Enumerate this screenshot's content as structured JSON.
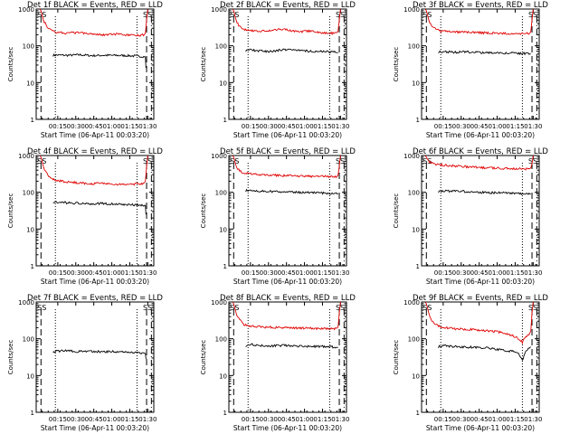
{
  "chart_data": [
    {
      "type": "line",
      "title": "Det 1f BLACK = Events, RED = LLD",
      "xlabel": "Start Time (06-Apr-11 00:03:20)",
      "ylabel": "Counts/sec",
      "yscale": "log",
      "ylim": [
        1,
        1000
      ],
      "xlim_min": [
        0,
        98
      ],
      "x_tick_labels": [
        "00:15",
        "00:30",
        "00:45",
        "01:00",
        "01:15",
        "01:30"
      ],
      "y_tick_labels": [
        "1",
        "10",
        "100",
        "1000"
      ],
      "markers": [
        "SS",
        "SS"
      ],
      "series": [
        {
          "name": "BLACK",
          "color": "#000000",
          "x": [
            8,
            12,
            20,
            30,
            40,
            50,
            60,
            70,
            80,
            85,
            85.5
          ],
          "y": [
            55,
            56,
            55,
            57,
            54,
            55,
            55,
            54,
            52,
            50,
            25
          ]
        },
        {
          "name": "RED",
          "color": "#e00000",
          "x": [
            -3,
            -2,
            0,
            3,
            6,
            10,
            20,
            30,
            40,
            50,
            60,
            70,
            80,
            84,
            85,
            86,
            87
          ],
          "y": [
            1000,
            900,
            500,
            330,
            270,
            240,
            220,
            230,
            215,
            200,
            205,
            195,
            190,
            200,
            220,
            500,
            1000
          ]
        }
      ]
    },
    {
      "type": "line",
      "title": "Det 2f BLACK = Events, RED = LLD",
      "xlabel": "Start Time (06-Apr-11 00:03:20)",
      "ylabel": "Counts/sec",
      "yscale": "log",
      "ylim": [
        1,
        1000
      ],
      "x_tick_labels": [
        "00:15",
        "00:30",
        "00:45",
        "01:00",
        "01:15",
        "01:30"
      ],
      "y_tick_labels": [
        "1",
        "10",
        "100",
        "1000"
      ],
      "markers": [
        "SS",
        "SS"
      ],
      "series": [
        {
          "name": "BLACK",
          "color": "#000000",
          "x": [
            8,
            12,
            20,
            30,
            40,
            50,
            60,
            70,
            80,
            85
          ],
          "y": [
            75,
            78,
            72,
            70,
            80,
            78,
            72,
            70,
            68,
            65
          ]
        },
        {
          "name": "RED",
          "color": "#e00000",
          "x": [
            -3,
            -2,
            0,
            3,
            6,
            10,
            20,
            30,
            40,
            50,
            60,
            70,
            80,
            84,
            85,
            86,
            87
          ],
          "y": [
            1000,
            900,
            500,
            330,
            280,
            270,
            250,
            260,
            290,
            240,
            250,
            230,
            220,
            230,
            250,
            500,
            1000
          ]
        }
      ]
    },
    {
      "type": "line",
      "title": "Det 3f BLACK = Events, RED = LLD",
      "xlabel": "Start Time (06-Apr-11 00:03:20)",
      "ylabel": "Counts/sec",
      "yscale": "log",
      "ylim": [
        1,
        1000
      ],
      "x_tick_labels": [
        "00:15",
        "00:30",
        "00:45",
        "01:00",
        "01:15",
        "01:30"
      ],
      "y_tick_labels": [
        "1",
        "10",
        "100",
        "1000"
      ],
      "markers": [
        "SS",
        "SS"
      ],
      "series": [
        {
          "name": "BLACK",
          "color": "#000000",
          "x": [
            8,
            12,
            20,
            30,
            40,
            50,
            60,
            70,
            80,
            85
          ],
          "y": [
            68,
            70,
            67,
            68,
            66,
            65,
            64,
            63,
            62,
            60
          ]
        },
        {
          "name": "RED",
          "color": "#e00000",
          "x": [
            -3,
            -2,
            0,
            3,
            6,
            10,
            20,
            30,
            40,
            50,
            60,
            70,
            80,
            84,
            85,
            86,
            87
          ],
          "y": [
            1000,
            900,
            500,
            330,
            280,
            250,
            240,
            235,
            230,
            225,
            220,
            215,
            210,
            220,
            240,
            500,
            1000
          ]
        }
      ]
    },
    {
      "type": "line",
      "title": "Det 4f BLACK = Events, RED = LLD",
      "xlabel": "Start Time (06-Apr-11 00:03:20)",
      "ylabel": "Counts/sec",
      "yscale": "log",
      "ylim": [
        1,
        1000
      ],
      "x_tick_labels": [
        "00:15",
        "00:30",
        "00:45",
        "01:00",
        "01:15",
        "01:30"
      ],
      "y_tick_labels": [
        "1",
        "10",
        "100",
        "1000"
      ],
      "markers": [
        "SS",
        "SS"
      ],
      "series": [
        {
          "name": "BLACK",
          "color": "#000000",
          "x": [
            8,
            12,
            20,
            30,
            40,
            50,
            60,
            70,
            80,
            85,
            85.5
          ],
          "y": [
            55,
            54,
            52,
            50,
            48,
            50,
            47,
            46,
            45,
            44,
            25
          ]
        },
        {
          "name": "RED",
          "color": "#e00000",
          "x": [
            -3,
            -2,
            0,
            3,
            6,
            10,
            20,
            30,
            40,
            50,
            60,
            70,
            80,
            84,
            85,
            86,
            87
          ],
          "y": [
            1000,
            900,
            500,
            320,
            250,
            210,
            190,
            180,
            170,
            175,
            165,
            160,
            170,
            180,
            200,
            500,
            1000
          ]
        }
      ]
    },
    {
      "type": "line",
      "title": "Det 5f BLACK = Events, RED = LLD",
      "xlabel": "Start Time (06-Apr-11 00:03:20)",
      "ylabel": "Counts/sec",
      "yscale": "log",
      "ylim": [
        1,
        1000
      ],
      "x_tick_labels": [
        "00:15",
        "00:30",
        "00:45",
        "01:00",
        "01:15",
        "01:30"
      ],
      "y_tick_labels": [
        "1",
        "10",
        "100",
        "1000"
      ],
      "markers": [
        "SS",
        "SS"
      ],
      "series": [
        {
          "name": "BLACK",
          "color": "#000000",
          "x": [
            8,
            12,
            20,
            30,
            40,
            50,
            60,
            70,
            80,
            85
          ],
          "y": [
            110,
            115,
            108,
            105,
            102,
            100,
            98,
            95,
            92,
            90
          ]
        },
        {
          "name": "RED",
          "color": "#e00000",
          "x": [
            -3,
            -2,
            0,
            3,
            6,
            10,
            20,
            30,
            40,
            50,
            60,
            70,
            80,
            84,
            85,
            86,
            87
          ],
          "y": [
            1000,
            900,
            520,
            380,
            340,
            320,
            300,
            290,
            285,
            280,
            275,
            270,
            265,
            270,
            290,
            520,
            1000
          ]
        }
      ]
    },
    {
      "type": "line",
      "title": "Det 6f BLACK = Events, RED = LLD",
      "xlabel": "Start Time (06-Apr-11 00:03:20)",
      "ylabel": "Counts/sec",
      "yscale": "log",
      "ylim": [
        1,
        1000
      ],
      "x_tick_labels": [
        "00:15",
        "00:30",
        "00:45",
        "01:00",
        "01:15",
        "01:30"
      ],
      "y_tick_labels": [
        "1",
        "10",
        "100",
        "1000"
      ],
      "markers": [
        "SS",
        "SS"
      ],
      "series": [
        {
          "name": "BLACK",
          "color": "#000000",
          "x": [
            8,
            12,
            20,
            30,
            40,
            50,
            60,
            70,
            80,
            85
          ],
          "y": [
            105,
            110,
            108,
            105,
            100,
            98,
            96,
            94,
            92,
            90
          ]
        },
        {
          "name": "RED",
          "color": "#e00000",
          "x": [
            -3,
            -2,
            0,
            3,
            6,
            10,
            20,
            30,
            40,
            50,
            60,
            70,
            80,
            84,
            85,
            86,
            87
          ],
          "y": [
            1000,
            900,
            700,
            620,
            580,
            560,
            520,
            500,
            480,
            460,
            450,
            440,
            430,
            440,
            460,
            600,
            1000
          ]
        }
      ]
    },
    {
      "type": "line",
      "title": "Det 7f BLACK = Events, RED = LLD",
      "xlabel": "Start Time (06-Apr-11 00:03:20)",
      "ylabel": "Counts/sec",
      "yscale": "log",
      "ylim": [
        1,
        1000
      ],
      "x_tick_labels": [
        "00:15",
        "00:30",
        "00:45",
        "01:00",
        "01:15",
        "01:30"
      ],
      "y_tick_labels": [
        "1",
        "10",
        "100",
        "1000"
      ],
      "markers": [
        "SS",
        "SS"
      ],
      "series": [
        {
          "name": "BLACK",
          "color": "#000000",
          "x": [
            8,
            12,
            20,
            30,
            40,
            50,
            60,
            70,
            80,
            85,
            85.5
          ],
          "y": [
            45,
            46,
            47,
            45,
            46,
            44,
            45,
            43,
            42,
            40,
            28
          ]
        }
      ]
    },
    {
      "type": "line",
      "title": "Det 8f BLACK = Events, RED = LLD",
      "xlabel": "Start Time (06-Apr-11 00:03:20)",
      "ylabel": "Counts/sec",
      "yscale": "log",
      "ylim": [
        1,
        1000
      ],
      "x_tick_labels": [
        "00:15",
        "00:30",
        "00:45",
        "01:00",
        "01:15",
        "01:30"
      ],
      "y_tick_labels": [
        "1",
        "10",
        "100",
        "1000"
      ],
      "markers": [
        "SS",
        "SS"
      ],
      "series": [
        {
          "name": "BLACK",
          "color": "#000000",
          "x": [
            8,
            12,
            20,
            30,
            40,
            50,
            60,
            70,
            80,
            85
          ],
          "y": [
            65,
            70,
            66,
            64,
            66,
            63,
            62,
            62,
            60,
            58
          ]
        },
        {
          "name": "RED",
          "color": "#e00000",
          "x": [
            -3,
            -2,
            0,
            3,
            6,
            10,
            20,
            30,
            40,
            50,
            60,
            70,
            80,
            84,
            85,
            86,
            87
          ],
          "y": [
            1000,
            900,
            500,
            320,
            250,
            220,
            210,
            205,
            200,
            198,
            195,
            190,
            185,
            195,
            210,
            500,
            1000
          ]
        }
      ]
    },
    {
      "type": "line",
      "title": "Det 9f BLACK = Events, RED = LLD",
      "xlabel": "Start Time (06-Apr-11 00:03:20)",
      "ylabel": "Counts/sec",
      "yscale": "log",
      "ylim": [
        1,
        1000
      ],
      "x_tick_labels": [
        "00:15",
        "00:30",
        "00:45",
        "01:00",
        "01:15",
        "01:30"
      ],
      "y_tick_labels": [
        "1",
        "10",
        "100",
        "1000"
      ],
      "markers": [
        "SS",
        "SS"
      ],
      "series": [
        {
          "name": "BLACK",
          "color": "#000000",
          "x": [
            8,
            12,
            20,
            30,
            40,
            50,
            60,
            70,
            75,
            78,
            80,
            83,
            85
          ],
          "y": [
            60,
            65,
            62,
            60,
            58,
            56,
            50,
            45,
            38,
            25,
            40,
            55,
            60
          ]
        },
        {
          "name": "RED",
          "color": "#e00000",
          "x": [
            -3,
            -2,
            0,
            3,
            6,
            10,
            20,
            30,
            40,
            50,
            60,
            70,
            75,
            78,
            80,
            83,
            84,
            85,
            86,
            87
          ],
          "y": [
            1000,
            900,
            500,
            300,
            240,
            210,
            190,
            180,
            175,
            165,
            150,
            120,
            100,
            80,
            110,
            130,
            140,
            160,
            500,
            1000
          ]
        }
      ]
    }
  ]
}
